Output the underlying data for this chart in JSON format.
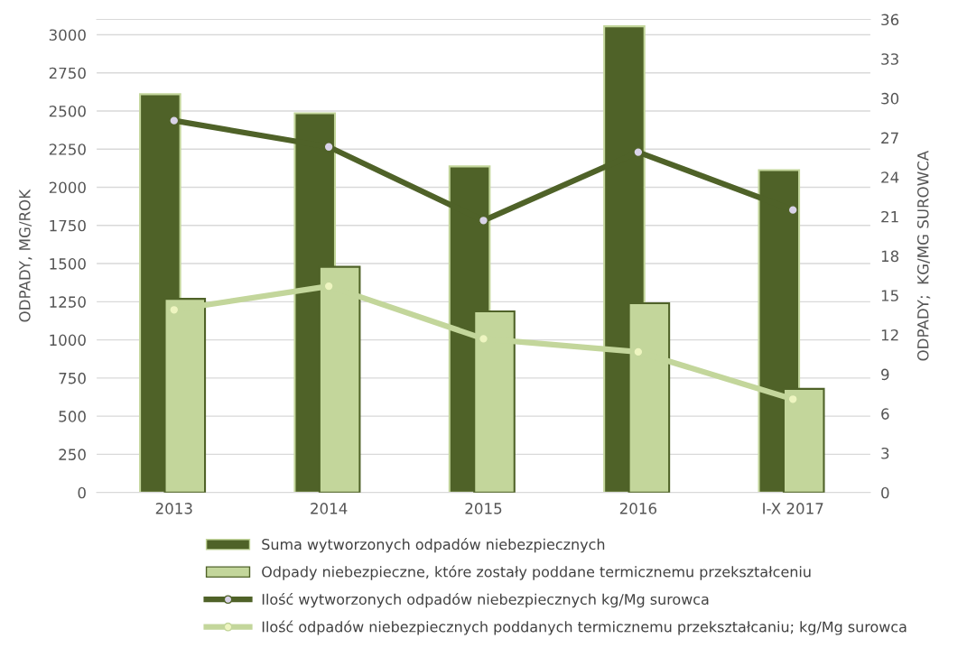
{
  "chart_data": {
    "type": "bar",
    "categories": [
      "2013",
      "2014",
      "2015",
      "2016",
      "I-X 2017"
    ],
    "ylabel": "ODPADY, MG/ROK",
    "y2label": "ODPADY;  KG/MG SUROWCA",
    "ylim": [
      0,
      3100
    ],
    "yticks": [
      0,
      250,
      500,
      750,
      1000,
      1250,
      1500,
      1750,
      2000,
      2250,
      2500,
      2750,
      3000
    ],
    "y2lim": [
      0,
      36
    ],
    "y2ticks": [
      0,
      3,
      6,
      9,
      12,
      15,
      18,
      21,
      24,
      27,
      30,
      33,
      36
    ],
    "grid": "y",
    "legend": "bottom",
    "marker": "circle",
    "series": [
      {
        "name": "Suma wytworzonych odpadów niebezpiecznych",
        "color": "#4f6228",
        "values": [
          2610,
          2485,
          2137,
          3055,
          2113
        ]
      },
      {
        "name": "Odpady niebezpieczne, które zostały poddane termicznemu przekształceniu",
        "color": "#c3d69b",
        "values": [
          1269,
          1479,
          1187,
          1240,
          679
        ]
      },
      {
        "name": "Ilość wytworzonych odpadów niebezpiecznych kg/Mg surowca",
        "type": "line",
        "axis": "y2",
        "color": "#4f6228",
        "values": [
          28.3,
          26.3,
          20.7,
          25.9,
          21.5
        ]
      },
      {
        "name": "Ilość odpadów niebezpiecznych poddanych termicznemu przekształcaniu; kg/Mg surowca",
        "type": "line",
        "axis": "y2",
        "color": "#c3d69b",
        "values": [
          13.9,
          15.7,
          11.7,
          10.7,
          7.1
        ]
      }
    ]
  }
}
